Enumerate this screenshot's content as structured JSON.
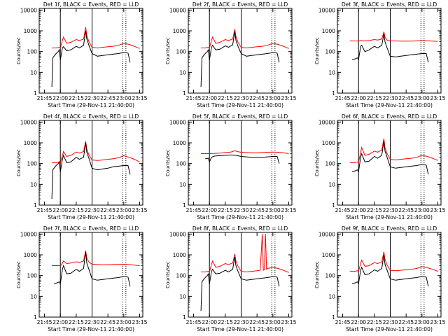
{
  "colors": {
    "events": "#000000",
    "lld": "#ff0000",
    "axis": "#000000",
    "background": "#ffffff"
  },
  "chart_data": {
    "type": "line",
    "shared": {
      "xlabel": "Start Time (29-Nov-11 21:40:00)",
      "ylabel": "Counts/sec",
      "xlim_minutes": [
        0,
        98
      ],
      "ylim": [
        1,
        12000
      ],
      "yscale": "log",
      "xtick_labels": [
        "21:45",
        "22:00",
        "22:15",
        "22:30",
        "22:45",
        "23:00",
        "23:15"
      ],
      "xtick_minutes": [
        5,
        20,
        35,
        50,
        65,
        80,
        95
      ],
      "ytick_labels": [
        "1",
        "10",
        "100",
        "1000",
        "10000"
      ],
      "ytick_values": [
        1,
        10,
        100,
        1000,
        10000
      ],
      "solid_vlines_minutes": [
        20,
        50
      ],
      "dotted_vlines_minutes": [
        79,
        82
      ],
      "series_names": [
        "Events",
        "LLD"
      ]
    },
    "panels": [
      {
        "title": "Det 1f, BLACK = Events, RED = LLD",
        "events_x": [
          12,
          13,
          14,
          16,
          18,
          19,
          20,
          22,
          23,
          26,
          30,
          35,
          38,
          42,
          44,
          45,
          47,
          50,
          55,
          60,
          65,
          70,
          75,
          80,
          84,
          86
        ],
        "events_y": [
          2,
          50,
          60,
          80,
          100,
          120,
          40,
          150,
          170,
          110,
          120,
          180,
          150,
          200,
          1000,
          400,
          200,
          80,
          60,
          65,
          70,
          75,
          80,
          90,
          85,
          30
        ],
        "lld_x": [
          12,
          16,
          19,
          20,
          22,
          23,
          26,
          30,
          35,
          38,
          42,
          44,
          45,
          47,
          50,
          55,
          60,
          65,
          70,
          75,
          80,
          85,
          90,
          95
        ],
        "lld_y": [
          150,
          150,
          160,
          150,
          350,
          500,
          250,
          280,
          380,
          340,
          400,
          1500,
          600,
          300,
          160,
          150,
          160,
          170,
          180,
          200,
          250,
          220,
          180,
          140
        ]
      },
      {
        "title": "Det 2f, BLACK = Events, RED = LLD",
        "events_x": [
          12,
          13,
          14,
          16,
          18,
          19,
          20,
          22,
          23,
          26,
          30,
          35,
          38,
          42,
          44,
          45,
          47,
          50,
          55,
          60,
          65,
          70,
          75,
          80,
          84,
          86
        ],
        "events_y": [
          2,
          50,
          60,
          80,
          100,
          120,
          40,
          160,
          200,
          120,
          130,
          190,
          160,
          210,
          900,
          350,
          180,
          80,
          60,
          65,
          70,
          75,
          80,
          90,
          85,
          30
        ],
        "lld_x": [
          12,
          16,
          19,
          20,
          22,
          23,
          26,
          30,
          35,
          38,
          42,
          44,
          45,
          47,
          50,
          55,
          60,
          65,
          70,
          75,
          80,
          85,
          90,
          95
        ],
        "lld_y": [
          150,
          150,
          160,
          150,
          350,
          500,
          250,
          280,
          380,
          340,
          400,
          1200,
          550,
          280,
          160,
          150,
          160,
          170,
          180,
          200,
          250,
          220,
          180,
          140
        ]
      },
      {
        "title": "Det 3f, BLACK = Events, RED = LLD",
        "events_x": [
          14,
          17,
          19,
          20,
          22,
          23,
          26,
          30,
          35,
          38,
          42,
          44,
          45,
          47,
          50,
          55,
          60,
          65,
          70,
          75,
          80,
          84,
          86
        ],
        "events_y": [
          40,
          45,
          50,
          40,
          180,
          200,
          100,
          120,
          180,
          150,
          200,
          700,
          300,
          150,
          60,
          55,
          60,
          65,
          70,
          75,
          80,
          80,
          30
        ],
        "lld_x": [
          12,
          20,
          22,
          26,
          30,
          35,
          38,
          42,
          44,
          45,
          47,
          50,
          60,
          70,
          80,
          85,
          90,
          95
        ],
        "lld_y": [
          330,
          320,
          340,
          330,
          340,
          380,
          360,
          400,
          900,
          500,
          350,
          330,
          320,
          320,
          340,
          330,
          320,
          310
        ]
      },
      {
        "title": "Det 4f, BLACK = Events, RED = LLD",
        "events_x": [
          12,
          13,
          14,
          16,
          18,
          19,
          20,
          22,
          23,
          26,
          30,
          35,
          38,
          42,
          44,
          45,
          47,
          50,
          55,
          60,
          65,
          70,
          75,
          80,
          84,
          86
        ],
        "events_y": [
          2,
          50,
          60,
          80,
          100,
          120,
          40,
          160,
          250,
          110,
          120,
          200,
          160,
          200,
          1000,
          350,
          180,
          60,
          50,
          55,
          60,
          70,
          75,
          80,
          80,
          30
        ],
        "lld_x": [
          12,
          16,
          19,
          20,
          22,
          23,
          26,
          30,
          35,
          38,
          42,
          44,
          45,
          47,
          50,
          55,
          60,
          65,
          70,
          75,
          80,
          85,
          90,
          95
        ],
        "lld_y": [
          110,
          110,
          120,
          110,
          250,
          380,
          220,
          250,
          360,
          320,
          380,
          1200,
          500,
          260,
          150,
          140,
          150,
          160,
          170,
          190,
          240,
          200,
          160,
          120
        ]
      },
      {
        "title": "Det 5f, BLACK = Events, RED = LLD",
        "events_x": [
          16,
          19,
          20,
          22,
          25,
          30,
          35,
          40,
          45,
          50,
          55,
          60,
          65,
          70,
          75,
          80,
          84,
          86
        ],
        "events_y": [
          170,
          180,
          120,
          200,
          230,
          240,
          250,
          260,
          250,
          220,
          210,
          200,
          200,
          200,
          210,
          220,
          220,
          100
        ],
        "lld_x": [
          12,
          20,
          25,
          30,
          35,
          40,
          42,
          44,
          46,
          50,
          55,
          60,
          65,
          70,
          75,
          80,
          85,
          90,
          95
        ],
        "lld_y": [
          300,
          300,
          310,
          320,
          340,
          360,
          380,
          420,
          380,
          350,
          340,
          330,
          330,
          340,
          350,
          360,
          350,
          330,
          300
        ]
      },
      {
        "title": "Det 6f, BLACK = Events, RED = LLD",
        "events_x": [
          14,
          17,
          19,
          20,
          22,
          23,
          26,
          30,
          35,
          38,
          42,
          44,
          45,
          47,
          50,
          55,
          60,
          65,
          70,
          75,
          80,
          84,
          86
        ],
        "events_y": [
          40,
          45,
          50,
          40,
          200,
          300,
          120,
          130,
          220,
          180,
          250,
          1200,
          400,
          200,
          70,
          60,
          65,
          70,
          75,
          80,
          90,
          85,
          30
        ],
        "lld_x": [
          12,
          16,
          19,
          20,
          22,
          23,
          26,
          30,
          35,
          38,
          42,
          44,
          45,
          47,
          50,
          55,
          60,
          65,
          70,
          75,
          80,
          85,
          90,
          95
        ],
        "lld_y": [
          110,
          110,
          120,
          110,
          350,
          600,
          250,
          280,
          400,
          350,
          450,
          1600,
          600,
          300,
          160,
          150,
          160,
          170,
          180,
          200,
          250,
          220,
          180,
          140
        ]
      },
      {
        "title": "Det 7f, BLACK = Events, RED = LLD",
        "events_x": [
          14,
          17,
          19,
          20,
          22,
          23,
          26,
          30,
          35,
          38,
          42,
          44,
          45,
          47,
          50,
          55,
          60,
          65,
          70,
          75,
          80,
          84,
          86
        ],
        "events_y": [
          40,
          45,
          50,
          40,
          200,
          300,
          120,
          130,
          200,
          160,
          220,
          1400,
          400,
          200,
          70,
          60,
          65,
          70,
          75,
          80,
          90,
          85,
          30
        ],
        "lld_x": [
          12,
          20,
          22,
          23,
          26,
          30,
          35,
          38,
          42,
          44,
          45,
          47,
          50,
          60,
          70,
          80,
          85,
          90,
          95
        ],
        "lld_y": [
          300,
          300,
          400,
          500,
          380,
          400,
          460,
          430,
          500,
          1600,
          700,
          450,
          350,
          330,
          340,
          350,
          340,
          320,
          300
        ]
      },
      {
        "title": "Det 8f, BLACK = Events, RED = LLD",
        "events_x": [
          12,
          13,
          14,
          16,
          18,
          19,
          20,
          22,
          23,
          26,
          30,
          35,
          38,
          42,
          44,
          45,
          47,
          50,
          55,
          60,
          65,
          70,
          75,
          80,
          84,
          86
        ],
        "events_y": [
          2,
          50,
          60,
          80,
          100,
          120,
          40,
          160,
          200,
          120,
          130,
          180,
          150,
          200,
          800,
          300,
          160,
          70,
          60,
          65,
          70,
          75,
          80,
          90,
          85,
          30
        ],
        "lld_x": [
          12,
          16,
          19,
          20,
          22,
          23,
          26,
          30,
          35,
          38,
          42,
          44,
          45,
          47,
          50,
          55,
          60,
          65,
          68,
          70,
          71,
          72,
          73,
          74,
          75,
          80,
          85,
          90,
          95
        ],
        "lld_y": [
          150,
          150,
          160,
          150,
          350,
          500,
          250,
          280,
          380,
          340,
          400,
          1100,
          500,
          280,
          160,
          150,
          160,
          170,
          180,
          10000,
          180,
          190,
          10000,
          200,
          220,
          250,
          220,
          180,
          140
        ]
      },
      {
        "title": "Det 9f, BLACK = Events, RED = LLD",
        "events_x": [
          14,
          17,
          19,
          20,
          22,
          23,
          26,
          30,
          35,
          38,
          42,
          44,
          45,
          47,
          50,
          55,
          60,
          65,
          70,
          75,
          80,
          84,
          86
        ],
        "events_y": [
          40,
          45,
          50,
          40,
          180,
          250,
          110,
          120,
          190,
          160,
          220,
          1000,
          350,
          180,
          70,
          60,
          65,
          70,
          75,
          80,
          90,
          85,
          30
        ],
        "lld_x": [
          12,
          16,
          19,
          20,
          22,
          23,
          26,
          30,
          35,
          38,
          42,
          44,
          45,
          47,
          50,
          55,
          60,
          65,
          70,
          75,
          80,
          85,
          90,
          95
        ],
        "lld_y": [
          160,
          160,
          170,
          160,
          380,
          550,
          280,
          300,
          420,
          380,
          450,
          1400,
          600,
          320,
          180,
          170,
          180,
          190,
          200,
          220,
          270,
          240,
          200,
          160
        ]
      }
    ]
  }
}
